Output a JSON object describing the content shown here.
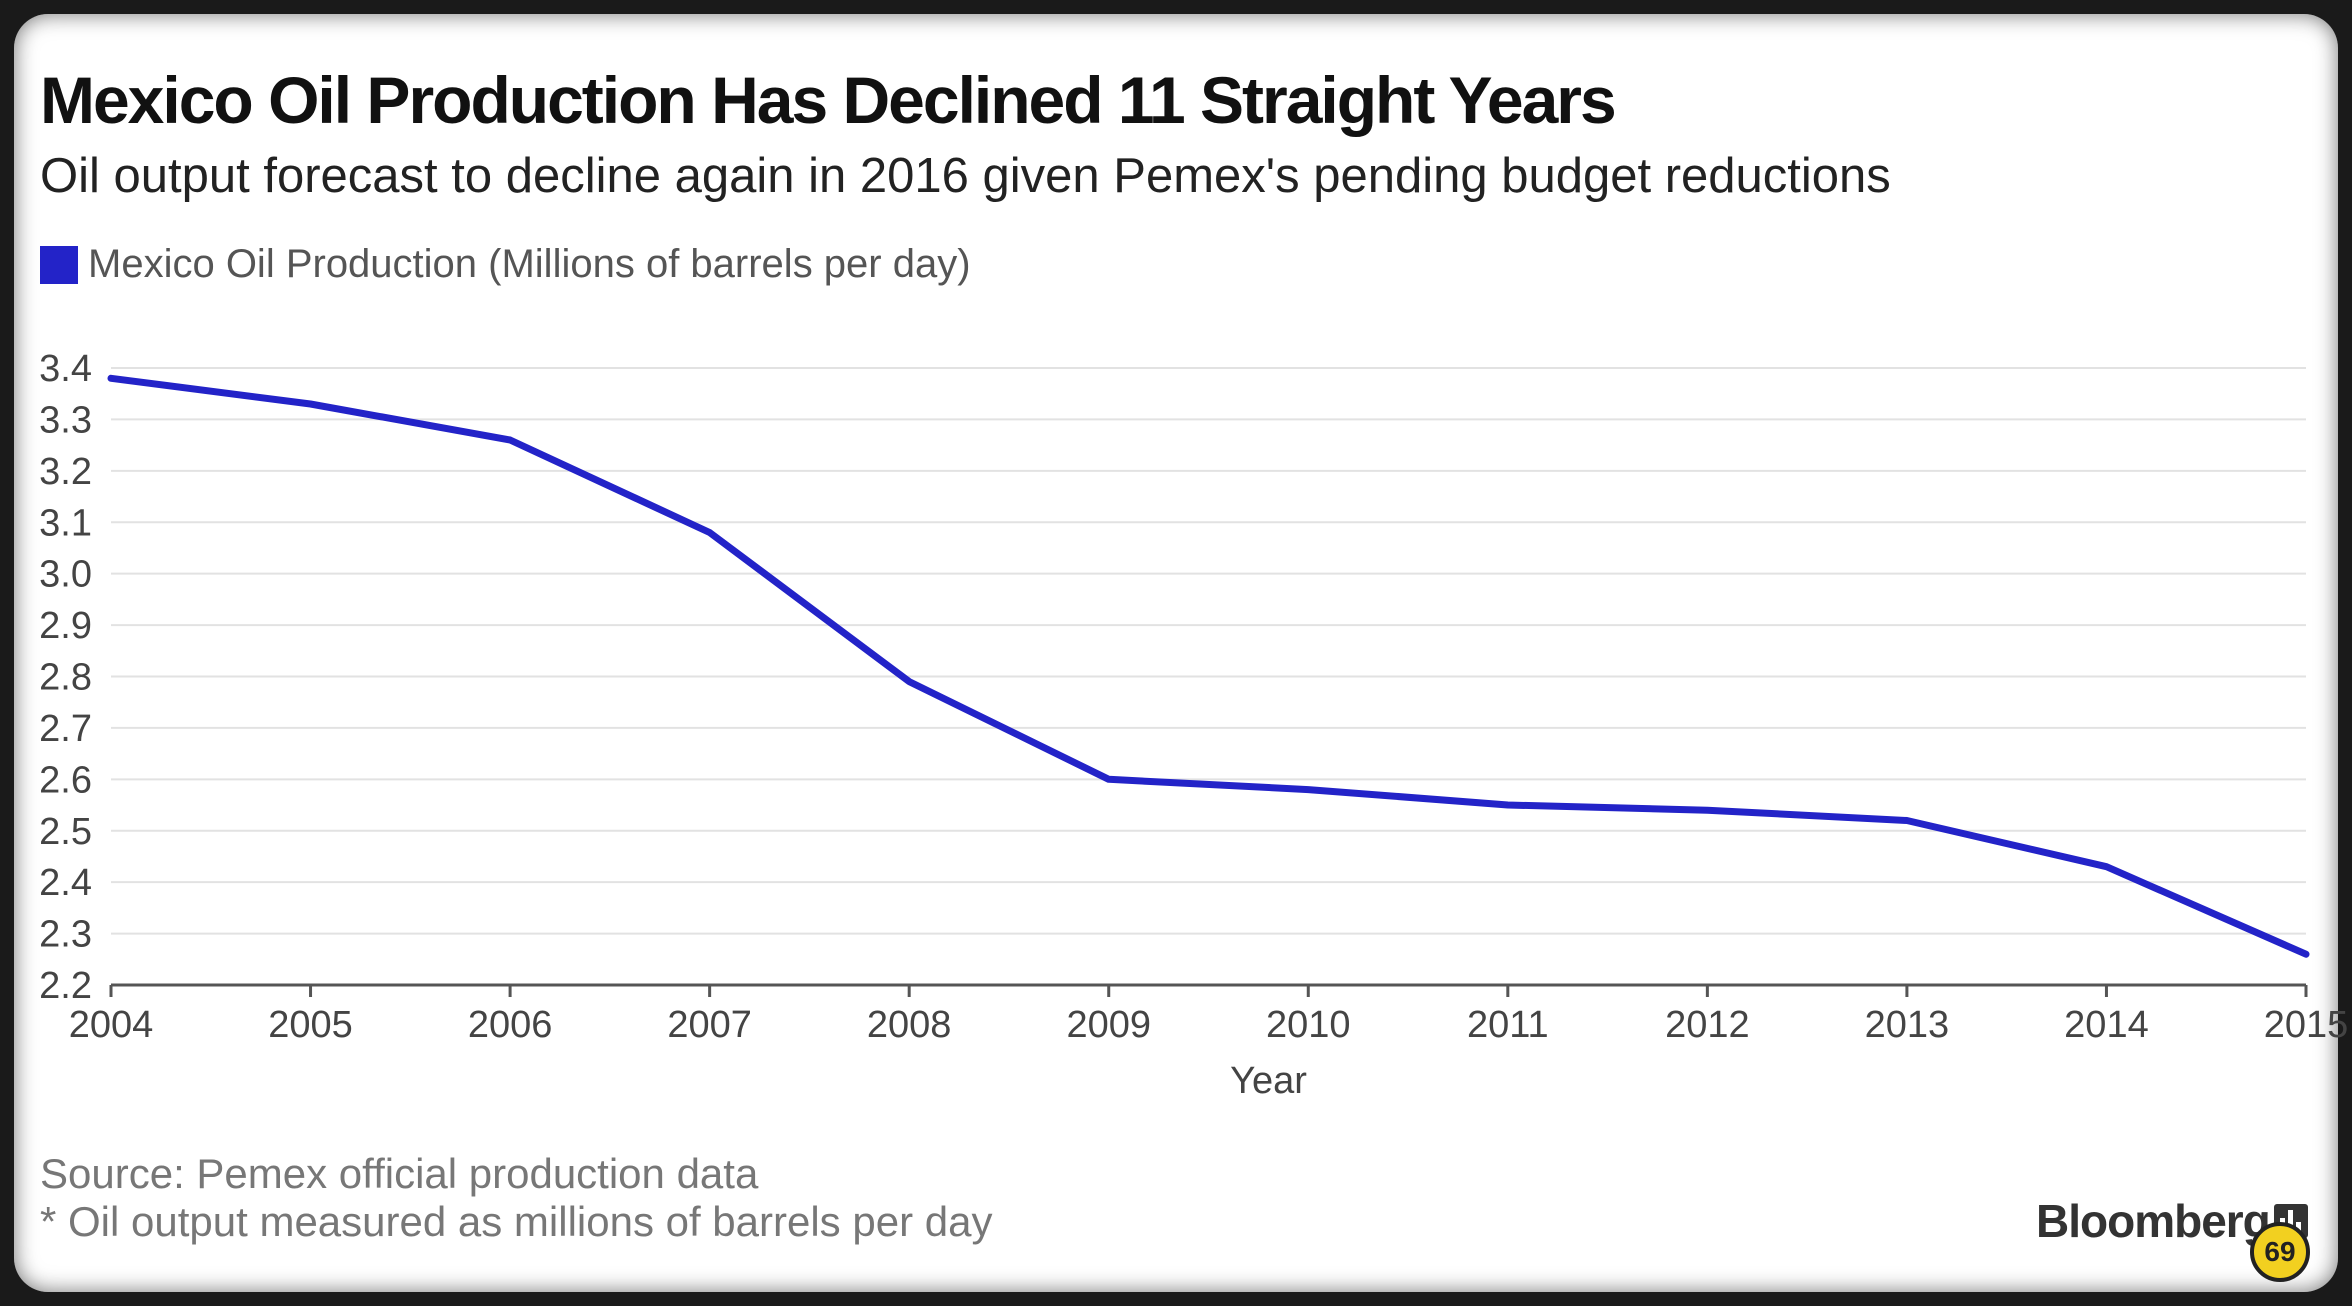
{
  "chart_data": {
    "type": "line",
    "title": "Mexico Oil Production Has Declined 11 Straight Years",
    "subtitle": "Oil output forecast to decline again in 2016 given Pemex's pending budget reductions",
    "xlabel": "Year",
    "ylabel": "",
    "x": [
      2004,
      2005,
      2006,
      2007,
      2008,
      2009,
      2010,
      2011,
      2012,
      2013,
      2014,
      2015
    ],
    "x_tick_labels": [
      "2004",
      "2005",
      "2006",
      "2007",
      "2008",
      "2009",
      "2010",
      "2011",
      "2012",
      "2013",
      "2014",
      "2015"
    ],
    "y_tick_labels": [
      "3.4",
      "3.3",
      "3.2",
      "3.1",
      "3.0",
      "2.9",
      "2.8",
      "2.7",
      "2.6",
      "2.5",
      "2.4",
      "2.3",
      "2.2"
    ],
    "ylim": [
      2.2,
      3.4
    ],
    "grid": true,
    "legend_position": "top-left",
    "series": [
      {
        "name": "Mexico Oil Production (Millions of barrels per day)",
        "color": "#2323c8",
        "values": [
          3.38,
          3.33,
          3.26,
          3.08,
          2.79,
          2.6,
          2.58,
          2.55,
          2.54,
          2.52,
          2.43,
          2.26
        ]
      }
    ]
  },
  "footer": {
    "source": "Source: Pemex official production data",
    "note": "* Oil output measured as millions of barrels per day",
    "brand": "Bloomberg"
  },
  "badge_text": "69"
}
